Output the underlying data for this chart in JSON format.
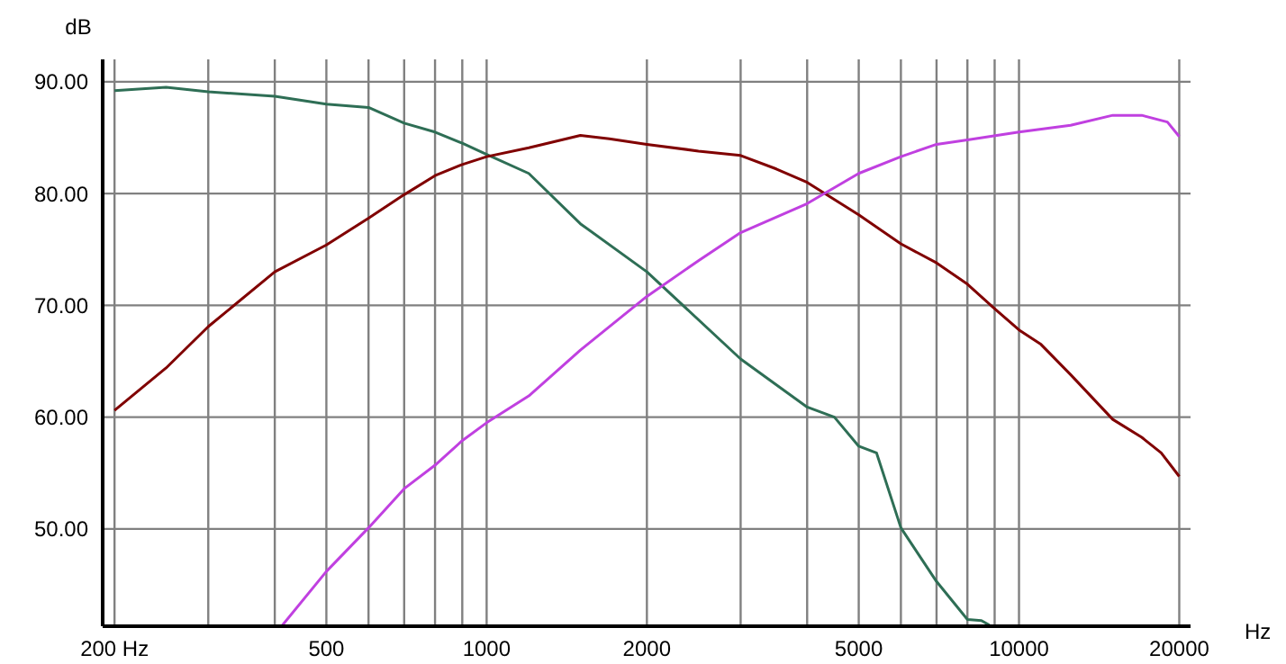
{
  "chart_data": {
    "type": "line",
    "xlabel": "Hz",
    "ylabel": "dB",
    "log": "x",
    "grid": true,
    "marker": "none",
    "line_style": "solid",
    "xlim": [
      190,
      21000
    ],
    "ylim": [
      41.3,
      92
    ],
    "xticks": [
      {
        "value": 200,
        "label": "200 Hz"
      },
      {
        "value": 300,
        "label": null
      },
      {
        "value": 400,
        "label": null
      },
      500,
      {
        "value": 600,
        "label": null
      },
      {
        "value": 700,
        "label": null
      },
      {
        "value": 800,
        "label": null
      },
      {
        "value": 900,
        "label": null
      },
      1000,
      2000,
      {
        "value": 3000,
        "label": null
      },
      {
        "value": 4000,
        "label": null
      },
      5000,
      {
        "value": 6000,
        "label": null
      },
      {
        "value": 7000,
        "label": null
      },
      {
        "value": 8000,
        "label": null
      },
      {
        "value": 9000,
        "label": null
      },
      10000,
      20000
    ],
    "yticks": [
      {
        "value": 50,
        "label": "50.00"
      },
      {
        "value": 60,
        "label": "60.00"
      },
      {
        "value": 70,
        "label": "70.00"
      },
      {
        "value": 80,
        "label": "80.00"
      },
      {
        "value": 90,
        "label": "90.00"
      }
    ],
    "series": [
      {
        "color": "#2e6e55",
        "x": [
          200,
          250,
          300,
          400,
          500,
          600,
          700,
          800,
          900,
          1000,
          1200,
          1500,
          2000,
          3000,
          4000,
          4500,
          5000,
          5400,
          6000,
          7000,
          8000,
          8500,
          8800
        ],
        "values": [
          89.2,
          89.5,
          89.1,
          88.7,
          88.0,
          87.7,
          86.3,
          85.5,
          84.5,
          83.5,
          81.8,
          77.3,
          73.0,
          65.2,
          60.9,
          60.0,
          57.4,
          56.8,
          50.1,
          45.3,
          41.9,
          41.8,
          41.4
        ]
      },
      {
        "color": "#800000",
        "x": [
          200,
          250,
          300,
          400,
          500,
          600,
          700,
          800,
          900,
          1000,
          1200,
          1500,
          1700,
          2000,
          2500,
          3000,
          3500,
          4000,
          5000,
          6000,
          7000,
          8000,
          9000,
          10000,
          11000,
          12500,
          15000,
          17000,
          18500,
          20000
        ],
        "values": [
          60.6,
          64.4,
          68.1,
          73.0,
          75.4,
          77.8,
          79.9,
          81.6,
          82.6,
          83.3,
          84.1,
          85.2,
          84.9,
          84.4,
          83.8,
          83.4,
          82.2,
          81.0,
          78.1,
          75.5,
          73.8,
          71.9,
          69.7,
          67.8,
          66.5,
          63.8,
          59.8,
          58.2,
          56.8,
          54.7
        ]
      },
      {
        "color": "#c040e0",
        "x": [
          412,
          500,
          600,
          700,
          800,
          900,
          1000,
          1200,
          1500,
          2000,
          2500,
          3000,
          4000,
          5000,
          6000,
          7000,
          8000,
          10000,
          12500,
          15000,
          17000,
          19000,
          20000
        ],
        "values": [
          41.3,
          46.2,
          50.1,
          53.6,
          55.7,
          57.9,
          59.5,
          61.9,
          66.0,
          70.8,
          74.0,
          76.5,
          79.1,
          81.8,
          83.3,
          84.4,
          84.8,
          85.5,
          86.1,
          87.0,
          87.0,
          86.4,
          85.1
        ]
      }
    ]
  }
}
